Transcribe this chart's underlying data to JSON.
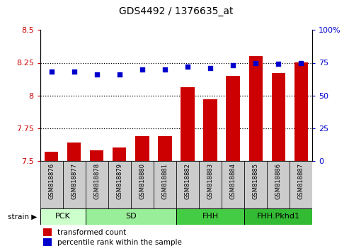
{
  "title": "GDS4492 / 1376635_at",
  "samples": [
    "GSM818876",
    "GSM818877",
    "GSM818878",
    "GSM818879",
    "GSM818880",
    "GSM818881",
    "GSM818882",
    "GSM818883",
    "GSM818884",
    "GSM818885",
    "GSM818886",
    "GSM818887"
  ],
  "bar_values": [
    7.57,
    7.64,
    7.58,
    7.6,
    7.69,
    7.69,
    8.06,
    7.97,
    8.15,
    8.3,
    8.17,
    8.25
  ],
  "dot_values": [
    68,
    68,
    66,
    66,
    70,
    70,
    72,
    71,
    73,
    75,
    74,
    75
  ],
  "bar_color": "#cc0000",
  "dot_color": "#0000cc",
  "ylim_left": [
    7.5,
    8.5
  ],
  "ylim_right": [
    0,
    100
  ],
  "yticks_left": [
    7.5,
    7.75,
    8.0,
    8.25,
    8.5
  ],
  "ytick_labels_left": [
    "7.5",
    "7.75",
    "8",
    "8.25",
    "8.5"
  ],
  "yticks_right": [
    0,
    25,
    50,
    75,
    100
  ],
  "ytick_labels_right": [
    "0",
    "25",
    "50",
    "75",
    "100%"
  ],
  "hgrid_lines": [
    7.75,
    8.0,
    8.25
  ],
  "groups": [
    {
      "label": "PCK",
      "start": 0,
      "end": 2,
      "color": "#ccffcc"
    },
    {
      "label": "SD",
      "start": 2,
      "end": 6,
      "color": "#99ee99"
    },
    {
      "label": "FHH",
      "start": 6,
      "end": 9,
      "color": "#44cc44"
    },
    {
      "label": "FHH.Pkhd1",
      "start": 9,
      "end": 12,
      "color": "#33bb33"
    }
  ],
  "strain_label": "strain",
  "legend_bar_label": "transformed count",
  "legend_dot_label": "percentile rank within the sample",
  "tick_label_color_left": "#cc0000",
  "tick_label_color_right": "#0000cc",
  "bg_color_plot": "#ffffff",
  "bg_color_xtick": "#cccccc",
  "bar_width": 0.6,
  "xlim": [
    -0.5,
    11.5
  ]
}
